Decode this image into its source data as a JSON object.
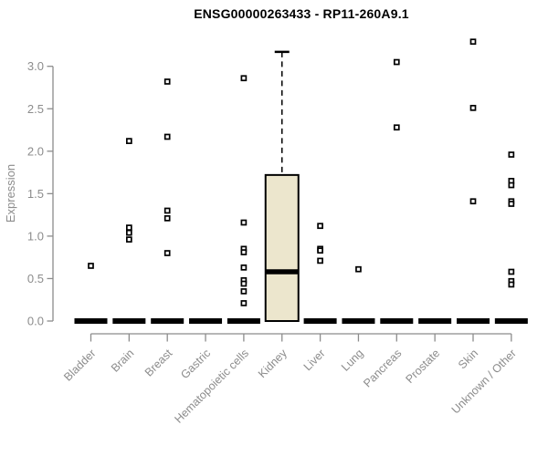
{
  "chart_data": {
    "type": "boxplot",
    "title": "ENSG00000263433 - RP11-260A9.1",
    "ylabel": "Expression",
    "ytick_labels": [
      "0.0",
      "0.5",
      "1.0",
      "1.5",
      "2.0",
      "2.5",
      "3.0"
    ],
    "ytick_values": [
      0,
      0.5,
      1,
      1.5,
      2,
      2.5,
      3
    ],
    "ylim": [
      0,
      3.35
    ],
    "grid": false,
    "legend": "none",
    "categories": [
      "Bladder",
      "Brain",
      "Breast",
      "Gastric",
      "Hematopoietic cells",
      "Kidney",
      "Liver",
      "Lung",
      "Pancreas",
      "Prostate",
      "Skin",
      "Unknown / Other"
    ],
    "boxes": [
      {
        "category": "Bladder",
        "q1": 0,
        "median": 0,
        "q3": 0,
        "whisker_low": 0,
        "whisker_high": 0,
        "outliers": [
          0.65
        ]
      },
      {
        "category": "Brain",
        "q1": 0,
        "median": 0,
        "q3": 0,
        "whisker_low": 0,
        "whisker_high": 0,
        "outliers": [
          2.12,
          1.1,
          1.04,
          0.96
        ]
      },
      {
        "category": "Breast",
        "q1": 0,
        "median": 0,
        "q3": 0,
        "whisker_low": 0,
        "whisker_high": 0,
        "outliers": [
          2.82,
          2.17,
          1.3,
          1.21,
          0.8
        ]
      },
      {
        "category": "Gastric",
        "q1": 0,
        "median": 0,
        "q3": 0,
        "whisker_low": 0,
        "whisker_high": 0,
        "outliers": []
      },
      {
        "category": "Hematopoietic cells",
        "q1": 0,
        "median": 0,
        "q3": 0,
        "whisker_low": 0,
        "whisker_high": 0,
        "outliers": [
          2.86,
          1.16,
          0.85,
          0.81,
          0.63,
          0.48,
          0.44,
          0.35,
          0.21
        ]
      },
      {
        "category": "Kidney",
        "q1": 0,
        "median": 0.58,
        "q3": 1.72,
        "whisker_low": 0,
        "whisker_high": 3.17,
        "outliers": []
      },
      {
        "category": "Liver",
        "q1": 0,
        "median": 0,
        "q3": 0,
        "whisker_low": 0,
        "whisker_high": 0,
        "outliers": [
          1.12,
          0.85,
          0.83,
          0.71
        ]
      },
      {
        "category": "Lung",
        "q1": 0,
        "median": 0,
        "q3": 0,
        "whisker_low": 0,
        "whisker_high": 0,
        "outliers": [
          0.61
        ]
      },
      {
        "category": "Pancreas",
        "q1": 0,
        "median": 0,
        "q3": 0,
        "whisker_low": 0,
        "whisker_high": 0,
        "outliers": [
          3.05,
          2.28
        ]
      },
      {
        "category": "Prostate",
        "q1": 0,
        "median": 0,
        "q3": 0,
        "whisker_low": 0,
        "whisker_high": 0,
        "outliers": []
      },
      {
        "category": "Skin",
        "q1": 0,
        "median": 0,
        "q3": 0,
        "whisker_low": 0,
        "whisker_high": 0,
        "outliers": [
          3.29,
          2.51,
          1.41
        ]
      },
      {
        "category": "Unknown / Other",
        "q1": 0,
        "median": 0,
        "q3": 0,
        "whisker_low": 0,
        "whisker_high": 0,
        "outliers": [
          1.96,
          1.65,
          1.6,
          1.41,
          1.38,
          0.58,
          0.47,
          0.43
        ]
      }
    ],
    "colors": {
      "background": "#ffffff",
      "box_fill": "#ece6cd",
      "box_stroke": "#000000",
      "median": "#000000",
      "outlier_stroke": "#000000",
      "outlier_fill": "#ffffff",
      "axis": "#8c8c8c",
      "tick_label": "#8c8c8c",
      "title": "#000000"
    }
  }
}
